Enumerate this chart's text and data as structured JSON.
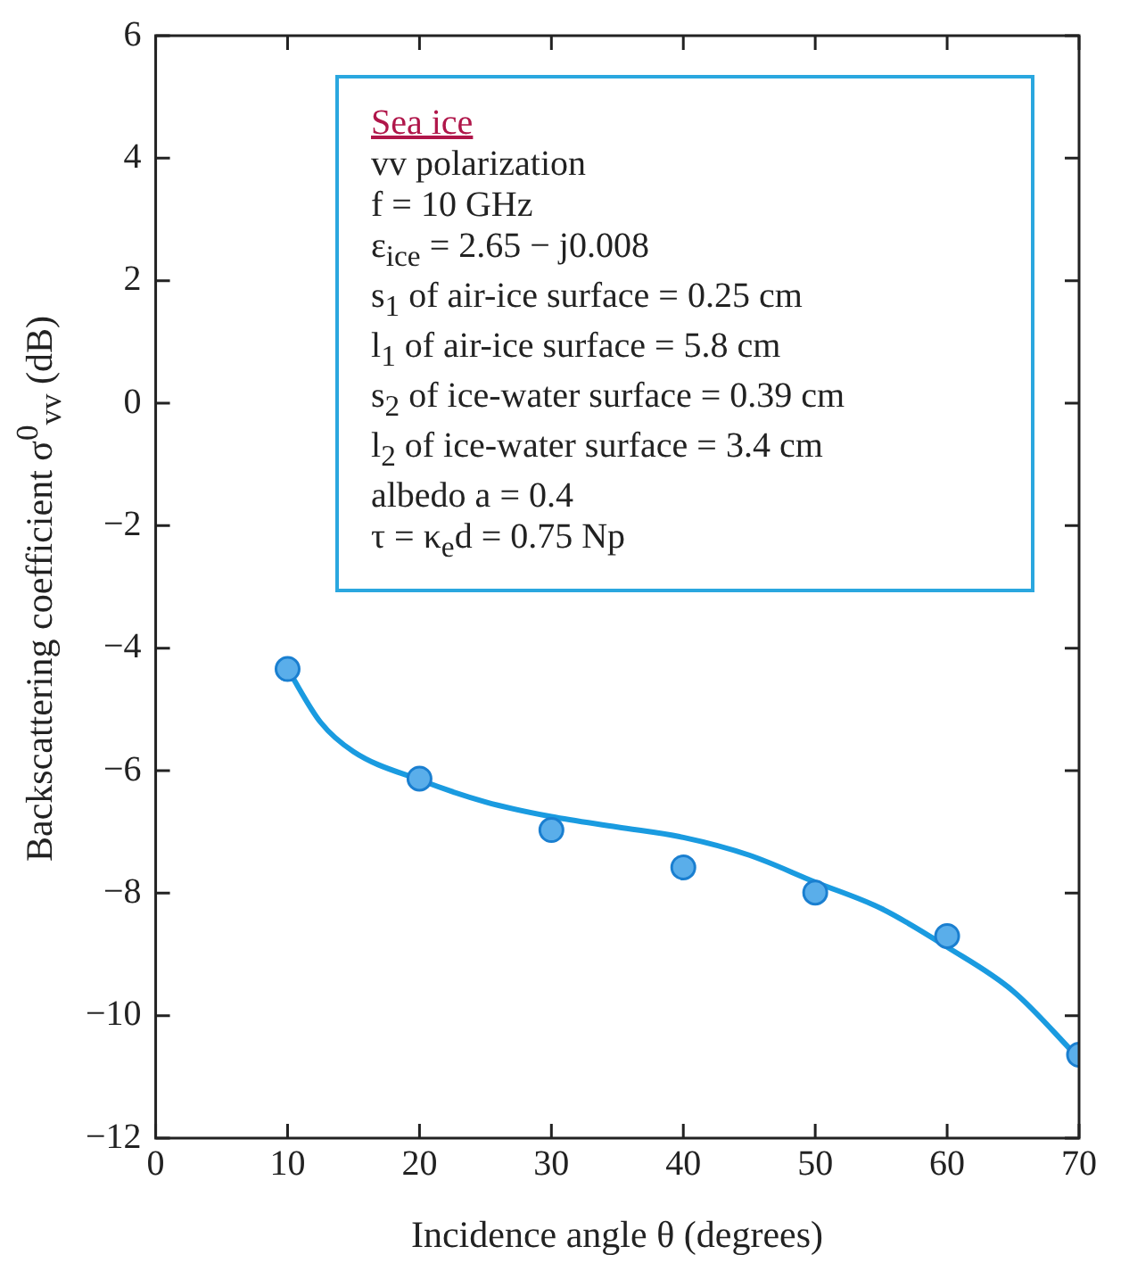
{
  "chart_data": {
    "type": "scatter",
    "title": "Sea ice",
    "xlabel": "Incidence angle θ (degrees)",
    "ylabel": "Backscattering coefficient σ$^{0}$$_{vv}$ (dB)",
    "annotations": [
      "vv polarization",
      "f = 10 GHz",
      "ε$_{ice}$ = 2.65 − j0.008",
      "s$_{1}$ of air-ice surface = 0.25 cm",
      "l$_{1}$ of air-ice surface = 5.8 cm",
      "s$_{2}$ of ice-water surface = 0.39 cm",
      "l$_{2}$ of ice-water surface = 3.4 cm",
      "albedo a = 0.4",
      "τ = κ$_{e}$d = 0.75 Np"
    ],
    "x": [
      10,
      20,
      30,
      40,
      50,
      60,
      70
    ],
    "series": [
      {
        "type": "line",
        "color": "#1a9be0",
        "marker": "none",
        "line_style": "solid",
        "x": [
          10,
          12.5,
          15,
          20,
          25,
          30,
          35,
          40,
          45,
          50,
          55,
          60,
          65,
          70
        ],
        "values": [
          -4.34,
          -5.21,
          -5.69,
          -6.15,
          -6.51,
          -6.75,
          -6.92,
          -7.09,
          -7.38,
          -7.82,
          -8.25,
          -8.88,
          -9.6,
          -10.7
        ]
      },
      {
        "color": "#5aaeea",
        "marker": "circle",
        "values": [
          -4.34,
          -6.13,
          -6.97,
          -7.58,
          -7.99,
          -8.7,
          -10.64
        ]
      }
    ],
    "xlim": [
      0,
      70
    ],
    "xticks": [
      0,
      10,
      20,
      30,
      40,
      50,
      60,
      70
    ],
    "ylim": [
      -12,
      6
    ],
    "yticks": [
      -12,
      -10,
      -8,
      -6,
      -4,
      -2,
      0,
      2,
      4,
      6
    ],
    "grid": false,
    "legend": false
  }
}
